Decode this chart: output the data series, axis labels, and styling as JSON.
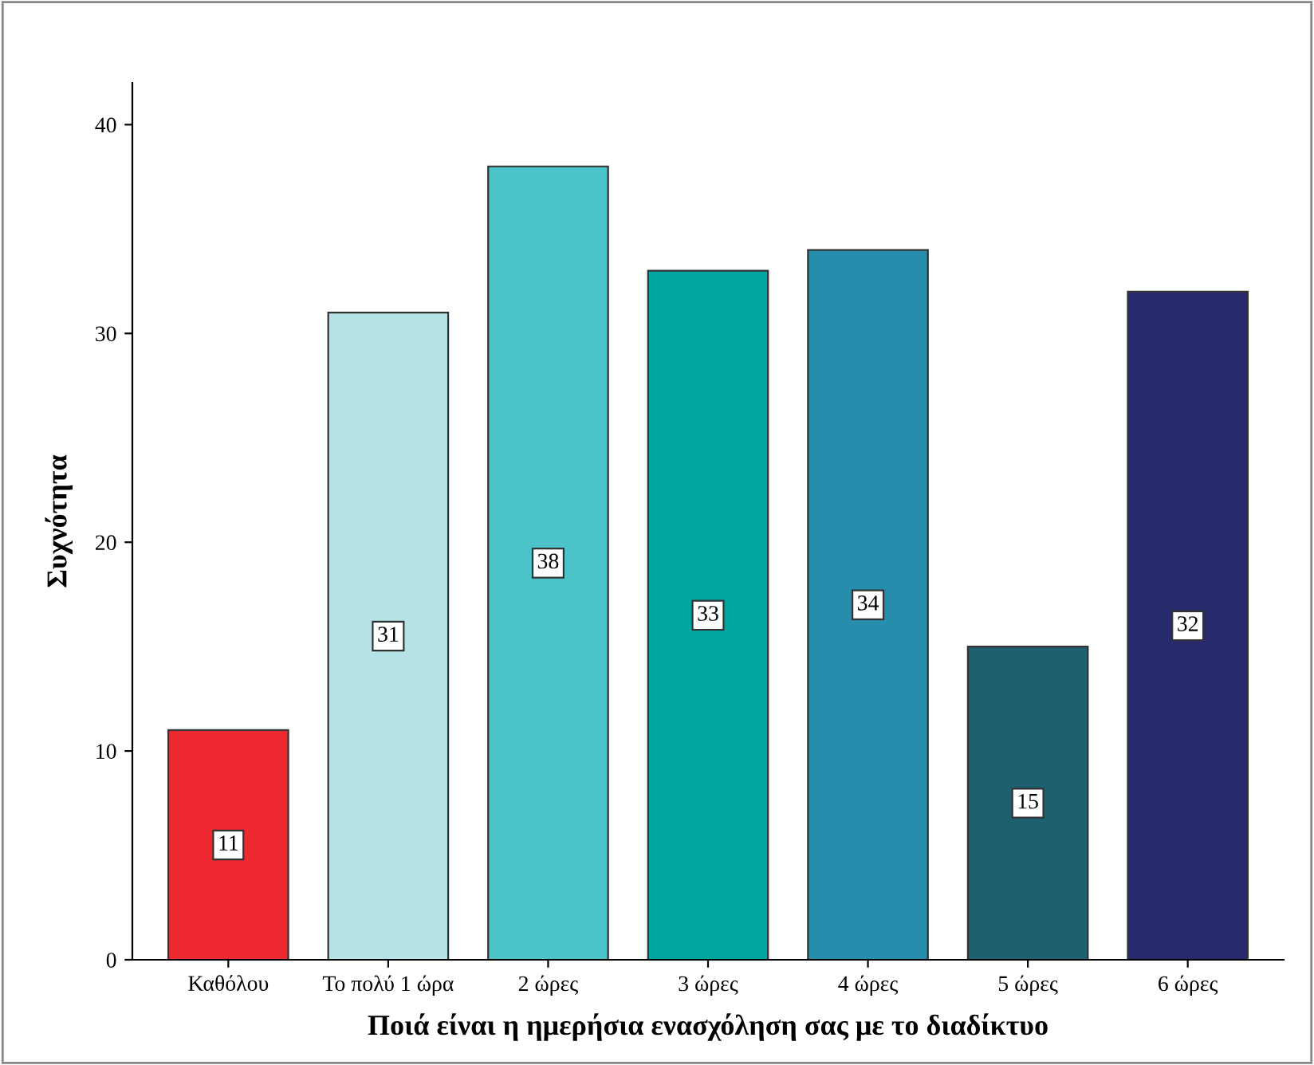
{
  "chart_data": {
    "type": "bar",
    "xlabel": "Ποιά είναι η ημερήσια ενασχόληση σας με το διαδίκτυο",
    "ylabel": "Συχνότητα",
    "categories": [
      "Καθόλου",
      "Το πολύ 1 ώρα",
      "2 ώρες",
      "3 ώρες",
      "4 ώρες",
      "5 ώρες",
      "6 ώρες"
    ],
    "values": [
      11,
      31,
      38,
      33,
      34,
      15,
      32
    ],
    "colors": [
      "#ee2a30",
      "#b5e3e6",
      "#4cc3c9",
      "#00a69f",
      "#278dac",
      "#1e5f70",
      "#272a6c"
    ],
    "ylim": [
      0,
      42
    ],
    "yticks": [
      0,
      10,
      20,
      30,
      40
    ],
    "grid": false,
    "data_labels": true
  }
}
